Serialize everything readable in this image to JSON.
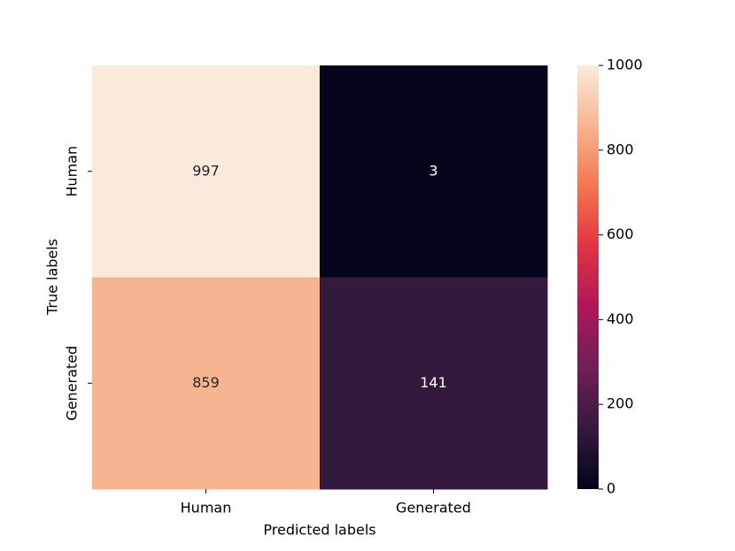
{
  "chart_data": {
    "type": "heatmap",
    "x_categories": [
      "Human",
      "Generated"
    ],
    "y_categories": [
      "Human",
      "Generated"
    ],
    "values": [
      [
        997,
        3
      ],
      [
        859,
        141
      ]
    ],
    "xlabel": "Predicted labels",
    "ylabel": "True labels",
    "clim": [
      0,
      1000
    ],
    "cticks": [
      0,
      200,
      400,
      600,
      800,
      1000
    ],
    "colormap": [
      "#03051a",
      "#35193e",
      "#701f57",
      "#ad1759",
      "#e13342",
      "#f37651",
      "#f6b48f",
      "#faebdd"
    ]
  }
}
